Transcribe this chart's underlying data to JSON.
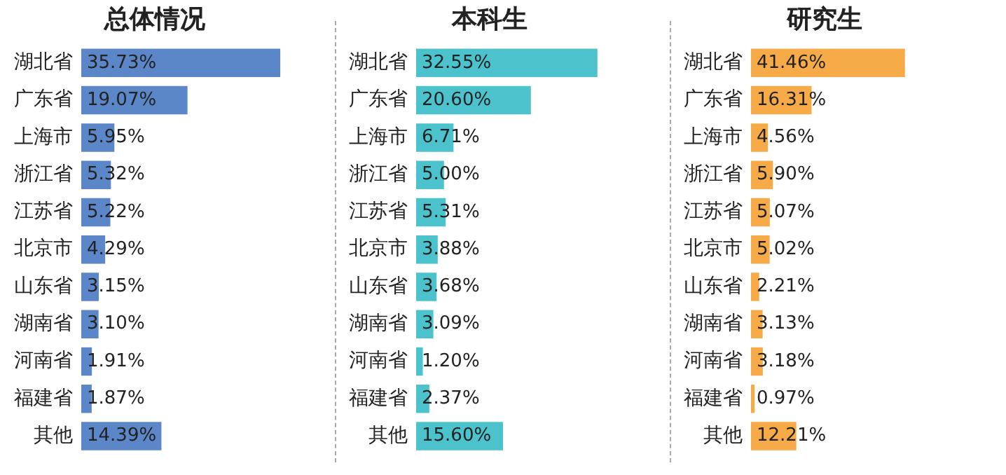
{
  "chart_data": [
    {
      "type": "bar",
      "orientation": "horizontal",
      "title": "总体情况",
      "categories": [
        "湖北省",
        "广东省",
        "上海市",
        "浙江省",
        "江苏省",
        "北京市",
        "山东省",
        "湖南省",
        "河南省",
        "福建省",
        "其他"
      ],
      "color": "#5b87c9",
      "tick_labels": "y",
      "grid": false,
      "legend": false,
      "values": [
        35.73,
        19.07,
        5.95,
        5.32,
        5.22,
        4.29,
        3.15,
        3.1,
        1.91,
        1.87,
        14.39
      ],
      "value_labels": [
        "35.73%",
        "19.07%",
        "5.95%",
        "5.32%",
        "5.22%",
        "4.29%",
        "3.15%",
        "3.10%",
        "1.91%",
        "1.87%",
        "14.39%"
      ]
    },
    {
      "type": "bar",
      "orientation": "horizontal",
      "title": "本科生",
      "categories": [
        "湖北省",
        "广东省",
        "上海市",
        "浙江省",
        "江苏省",
        "北京市",
        "山东省",
        "湖南省",
        "河南省",
        "福建省",
        "其他"
      ],
      "color": "#4cc3cc",
      "tick_labels": "y",
      "grid": false,
      "legend": false,
      "values": [
        32.55,
        20.6,
        6.71,
        5.0,
        5.31,
        3.88,
        3.68,
        3.09,
        1.2,
        2.37,
        15.6
      ],
      "value_labels": [
        "32.55%",
        "20.60%",
        "6.71%",
        "5.00%",
        "5.31%",
        "3.88%",
        "3.68%",
        "3.09%",
        "1.20%",
        "2.37%",
        "15.60%"
      ]
    },
    {
      "type": "bar",
      "orientation": "horizontal",
      "title": "研究生",
      "categories": [
        "湖北省",
        "广东省",
        "上海市",
        "浙江省",
        "江苏省",
        "北京市",
        "山东省",
        "湖南省",
        "河南省",
        "福建省",
        "其他"
      ],
      "color": "#f7ab48",
      "tick_labels": "y",
      "grid": false,
      "legend": false,
      "values": [
        41.46,
        16.31,
        4.56,
        5.9,
        5.07,
        5.02,
        2.21,
        3.13,
        3.18,
        0.97,
        12.21
      ],
      "value_labels": [
        "41.46%",
        "16.31%",
        "4.56%",
        "5.90%",
        "5.07%",
        "5.02%",
        "2.21%",
        "3.13%",
        "3.18%",
        "0.97%",
        "12.21%"
      ]
    }
  ]
}
